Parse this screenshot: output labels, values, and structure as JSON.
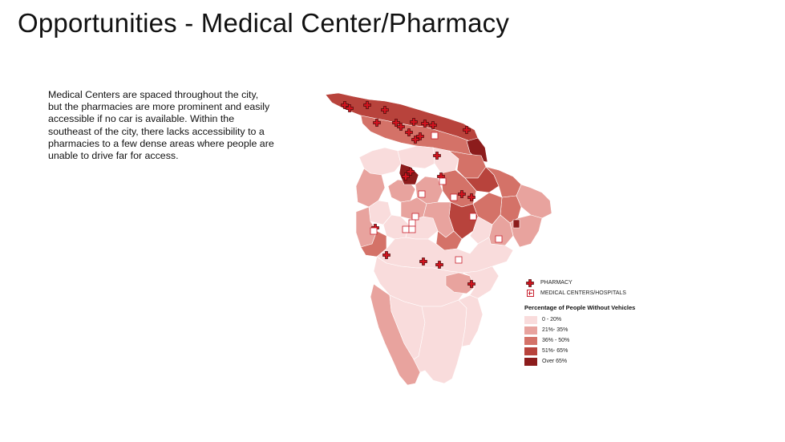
{
  "title": "Opportunities - Medical Center/Pharmacy",
  "body": "Medical Centers are spaced throughout the city, but the pharmacies are more prominent and easily accessible if no car is available. Within the southeast of the city, there lacks accessibility to a pharmacies to a few dense areas where people are unable to drive far for access.",
  "legend": {
    "symbols": [
      {
        "label": "PHARMACY",
        "icon": "red-cross-icon"
      },
      {
        "label": "MEDICAL CENTERS/HOSPITALS",
        "icon": "hospital-icon"
      }
    ],
    "heading": "Percentage of People Without Vehicles",
    "classes": [
      {
        "label": "0 - 20%",
        "color": "#f9dcdc"
      },
      {
        "label": "21%- 35%",
        "color": "#e8a39e"
      },
      {
        "label": "36% - 50%",
        "color": "#d47268"
      },
      {
        "label": "51%- 65%",
        "color": "#b8433c"
      },
      {
        "label": "Over 65%",
        "color": "#8c1c1c"
      }
    ]
  }
}
